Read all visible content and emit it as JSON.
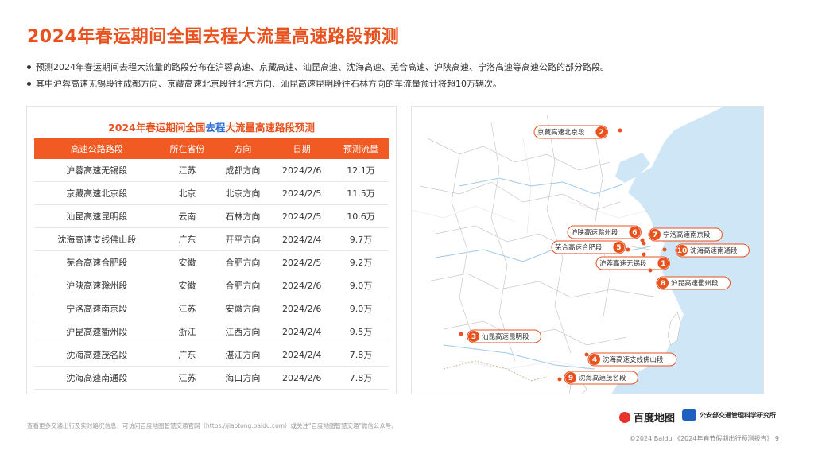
{
  "title": "2024年春运期间全国去程大流量高速路段预测",
  "bullets": [
    "预测2024年春运期间去程大流量的路段分布在沪蓉高速、京藏高速、汕昆高速、沈海高速、芜合高速、沪陕高速、宁洛高速等高速公路的部分路段。",
    "其中沪蓉高速无锡段往成都方向、京藏高速北京段往北京方向、汕昆高速昆明段往石林方向的车流量预计将超10万辆次。"
  ],
  "table": {
    "caption_pre": "2024年春运期间全国",
    "caption_highlight": "去程",
    "caption_post": "大流量高速路段预测",
    "headers": [
      "高速公路路段",
      "所在省份",
      "方向",
      "日期",
      "预测流量"
    ],
    "rows": [
      [
        "沪蓉高速无锡段",
        "江苏",
        "成都方向",
        "2024/2/6",
        "12.1万"
      ],
      [
        "京藏高速北京段",
        "北京",
        "北京方向",
        "2024/2/5",
        "11.5万"
      ],
      [
        "汕昆高速昆明段",
        "云南",
        "石林方向",
        "2024/2/5",
        "10.6万"
      ],
      [
        "沈海高速支线佛山段",
        "广东",
        "开平方向",
        "2024/2/4",
        "9.7万"
      ],
      [
        "芜合高速合肥段",
        "安徽",
        "合肥方向",
        "2024/2/5",
        "9.2万"
      ],
      [
        "沪陕高速滁州段",
        "安徽",
        "合肥方向",
        "2024/2/6",
        "9.0万"
      ],
      [
        "宁洛高速南京段",
        "江苏",
        "安徽方向",
        "2024/2/6",
        "9.0万"
      ],
      [
        "沪昆高速衢州段",
        "浙江",
        "江西方向",
        "2024/2/4",
        "9.5万"
      ],
      [
        "沈海高速茂名段",
        "广东",
        "湛江方向",
        "2024/2/4",
        "7.8万"
      ],
      [
        "沈海高速南通段",
        "江苏",
        "海口方向",
        "2024/2/6",
        "7.8万"
      ]
    ]
  },
  "map": {
    "accent": "#e8521f",
    "sea": "#cfe6f7",
    "land": "#ffffff",
    "pins": [
      {
        "num": "2",
        "label": "京藏高速北京段"
      },
      {
        "num": "6",
        "label": "沪陕高速滁州段"
      },
      {
        "num": "7",
        "label": "宁洛高速南京段"
      },
      {
        "num": "5",
        "label": "芜合高速合肥段"
      },
      {
        "num": "10",
        "label": "沈海高速南通段"
      },
      {
        "num": "1",
        "label": "沪蓉高速无锡段"
      },
      {
        "num": "8",
        "label": "沪昆高速衢州段"
      },
      {
        "num": "3",
        "label": "汕昆高速昆明段"
      },
      {
        "num": "4",
        "label": "沈海高速支线佛山段"
      },
      {
        "num": "9",
        "label": "沈海高速茂名段"
      }
    ]
  },
  "footer": "查看更多交通出行及实时路况信息，可访问百度地图智慧交通官网（https://jiaotong.baidu.com）或关注\"百度地图智慧交通\"微信公众号。",
  "logos": {
    "baidu": "百度地图",
    "mot": "公安部交通管理科学研究所"
  },
  "copyright": "©2024 Baidu 《2024年春节假期出行预测报告》 9"
}
